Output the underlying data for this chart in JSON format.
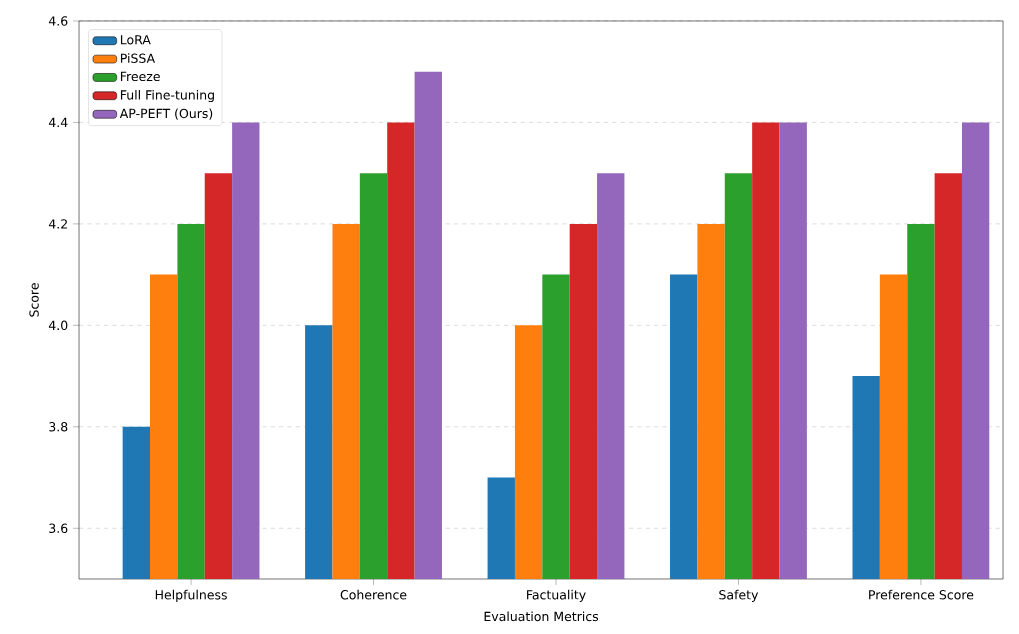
{
  "chart_data": {
    "type": "bar",
    "xlabel": "Evaluation Metrics",
    "ylabel": "Score",
    "categories": [
      "Helpfulness",
      "Coherence",
      "Factuality",
      "Safety",
      "Preference Score"
    ],
    "series": [
      {
        "name": "LoRA",
        "color": "#1f77b4",
        "values": [
          3.8,
          4.0,
          3.7,
          4.1,
          3.9
        ]
      },
      {
        "name": "PiSSA",
        "color": "#ff7f0e",
        "values": [
          4.1,
          4.2,
          4.0,
          4.2,
          4.1
        ]
      },
      {
        "name": "Freeze",
        "color": "#2ca02c",
        "values": [
          4.2,
          4.3,
          4.1,
          4.3,
          4.2
        ]
      },
      {
        "name": "Full Fine-tuning",
        "color": "#d62728",
        "values": [
          4.3,
          4.4,
          4.2,
          4.4,
          4.3
        ]
      },
      {
        "name": "AP-PEFT (Ours)",
        "color": "#9467bd",
        "values": [
          4.4,
          4.5,
          4.3,
          4.4,
          4.4
        ]
      }
    ],
    "ylim": [
      3.5,
      4.6
    ],
    "yticks": [
      3.6,
      3.8,
      {
        "value": 4,
        "label": "4.0"
      },
      4.2,
      4.4,
      4.6
    ],
    "grid": "y",
    "legend": "top left"
  }
}
